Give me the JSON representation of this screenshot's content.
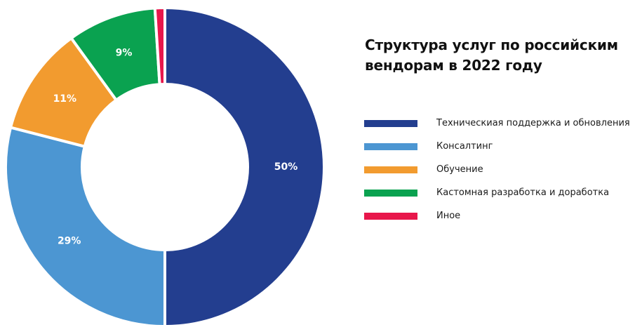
{
  "chart_data": {
    "type": "pie",
    "title": "Структура услуг по российским вендорам в 2022 году",
    "categories": [
      "Техническиая поддержка и обновления",
      "Консалтинг",
      "Обучение",
      "Кастомная разработка и доработка",
      "Иное"
    ],
    "values": [
      50,
      29,
      11,
      9,
      1
    ],
    "data_labels": [
      "50%",
      "29%",
      "11%",
      "9%",
      ""
    ],
    "colors": [
      "#233e8f",
      "#4c96d2",
      "#f29b2f",
      "#0aa250",
      "#e8174b"
    ],
    "donut": true,
    "legend_position": "right"
  }
}
